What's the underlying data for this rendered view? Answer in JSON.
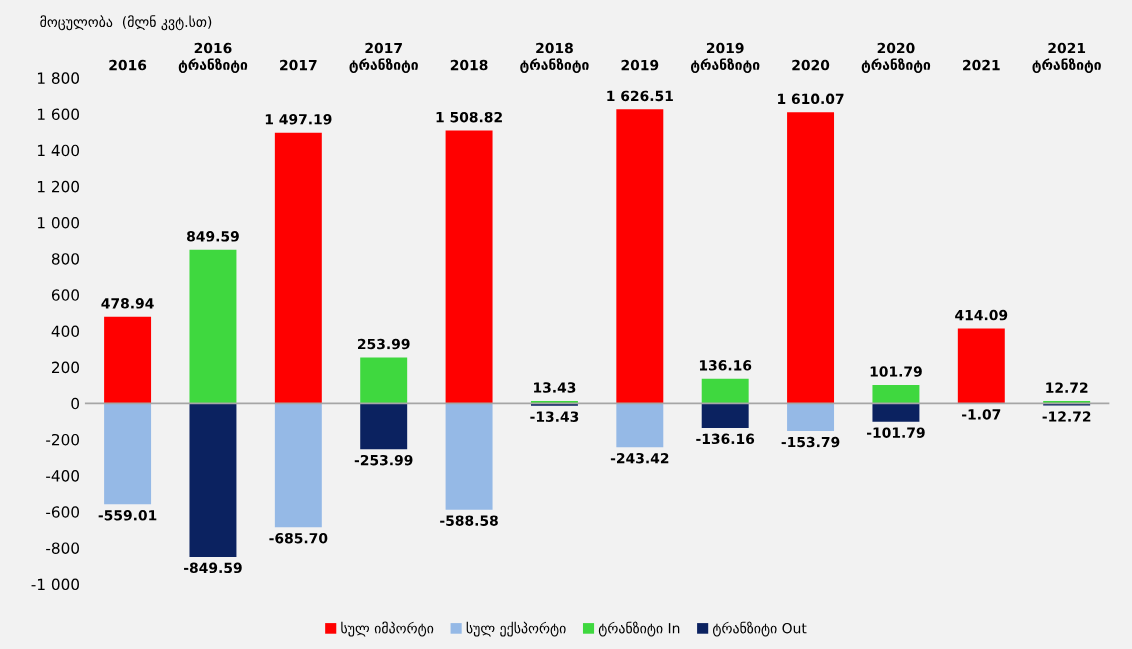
{
  "chart_data": {
    "type": "bar",
    "stacked": true,
    "ylabel": "მოცულობა  (მლნ კვტ.სთ)",
    "categories": [
      "2016",
      "2016\nტრანზიტი",
      "2017",
      "2017\nტრანზიტი",
      "2018",
      "2018\nტრანზიტი",
      "2019",
      "2019\nტრანზიტი",
      "2020",
      "2020\nტრანზიტი",
      "2021",
      "2021\nტრანზიტი"
    ],
    "series": [
      {
        "name": "სულ იმპორტი",
        "color": "#ff0000",
        "values": [
          478.94,
          null,
          1497.19,
          null,
          1508.82,
          null,
          1626.51,
          null,
          1610.07,
          null,
          414.09,
          null
        ],
        "value_labels": [
          "478.94",
          null,
          "1 497.19",
          null,
          "1 508.82",
          null,
          "1 626.51",
          null,
          "1 610.07",
          null,
          "414.09",
          null
        ]
      },
      {
        "name": "სულ ექსპორტი",
        "color": "#95b9e6",
        "values": [
          -559.01,
          null,
          -685.7,
          null,
          -588.58,
          null,
          -243.42,
          null,
          -153.79,
          null,
          -1.07,
          null
        ],
        "value_labels": [
          "-559.01",
          null,
          "-685.70",
          null,
          "-588.58",
          null,
          "-243.42",
          null,
          "-153.79",
          null,
          "-1.07",
          null
        ]
      },
      {
        "name": "ტრანზიტი In",
        "color": "#3fd83f",
        "values": [
          null,
          849.59,
          null,
          253.99,
          null,
          13.43,
          null,
          136.16,
          null,
          101.79,
          null,
          12.72
        ],
        "value_labels": [
          null,
          "849.59",
          null,
          "253.99",
          null,
          "13.43",
          null,
          "136.16",
          null,
          "101.79",
          null,
          "12.72"
        ]
      },
      {
        "name": "ტრანზიტი Out",
        "color": "#0b2260",
        "values": [
          null,
          -849.59,
          null,
          -253.99,
          null,
          -13.43,
          null,
          -136.16,
          null,
          -101.79,
          null,
          -12.72
        ],
        "value_labels": [
          null,
          "-849.59",
          null,
          "-253.99",
          null,
          "-13.43",
          null,
          "-136.16",
          null,
          "-101.79",
          null,
          "-12.72"
        ]
      }
    ],
    "ylim": [
      -1000,
      1800
    ],
    "yticks": [
      {
        "value": -1000,
        "label": "-1 000"
      },
      -800,
      -600,
      -400,
      -200,
      0,
      200,
      400,
      600,
      800,
      {
        "value": 1000,
        "label": "1 000"
      },
      {
        "value": 1200,
        "label": "1 200"
      },
      {
        "value": 1400,
        "label": "1 400"
      },
      {
        "value": 1600,
        "label": "1 600"
      },
      {
        "value": 1800,
        "label": "1 800"
      }
    ],
    "ref_lines": [
      {
        "axis": "y",
        "value": 0,
        "color": "#a6a6a6"
      }
    ],
    "grid": false,
    "legend": "bottom"
  }
}
